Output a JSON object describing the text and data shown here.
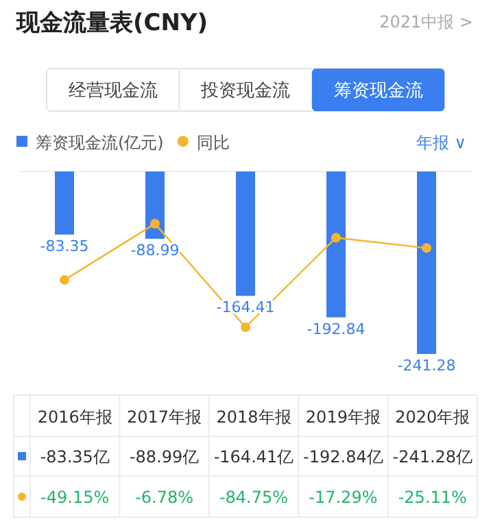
{
  "chart_data": {
    "type": "bar",
    "title": "现金流量表(CNY)",
    "annotations": [
      "2021中报 >",
      "经营现金流",
      "投资现金流",
      "筹资现金流",
      "年报 ∨",
      "-83.35亿",
      "-88.99亿",
      "-164.41亿",
      "-192.84亿",
      "-241.28亿"
    ],
    "categories": [
      "2016年报",
      "2017年报",
      "2018年报",
      "2019年报",
      "2020年报"
    ],
    "series": [
      {
        "name": "筹资现金流(亿元)",
        "color": "#3b7ded",
        "values": [
          -83.35,
          -88.99,
          -164.41,
          -192.84,
          -241.28
        ],
        "value_labels": [
          "-83.35",
          "-88.99",
          "-164.41",
          "-192.84",
          "-241.28"
        ]
      },
      {
        "name": "同比",
        "type": "line",
        "axis": "y2",
        "color": "#f7b52c",
        "marker": "circle",
        "values": [
          -49.15,
          -6.78,
          -84.75,
          -17.29,
          -25.11
        ],
        "value_labels": [
          "-49.15%",
          "-6.78%",
          "-84.75%",
          "-17.29%",
          "-25.11%"
        ]
      }
    ],
    "legend": "top left"
  }
}
